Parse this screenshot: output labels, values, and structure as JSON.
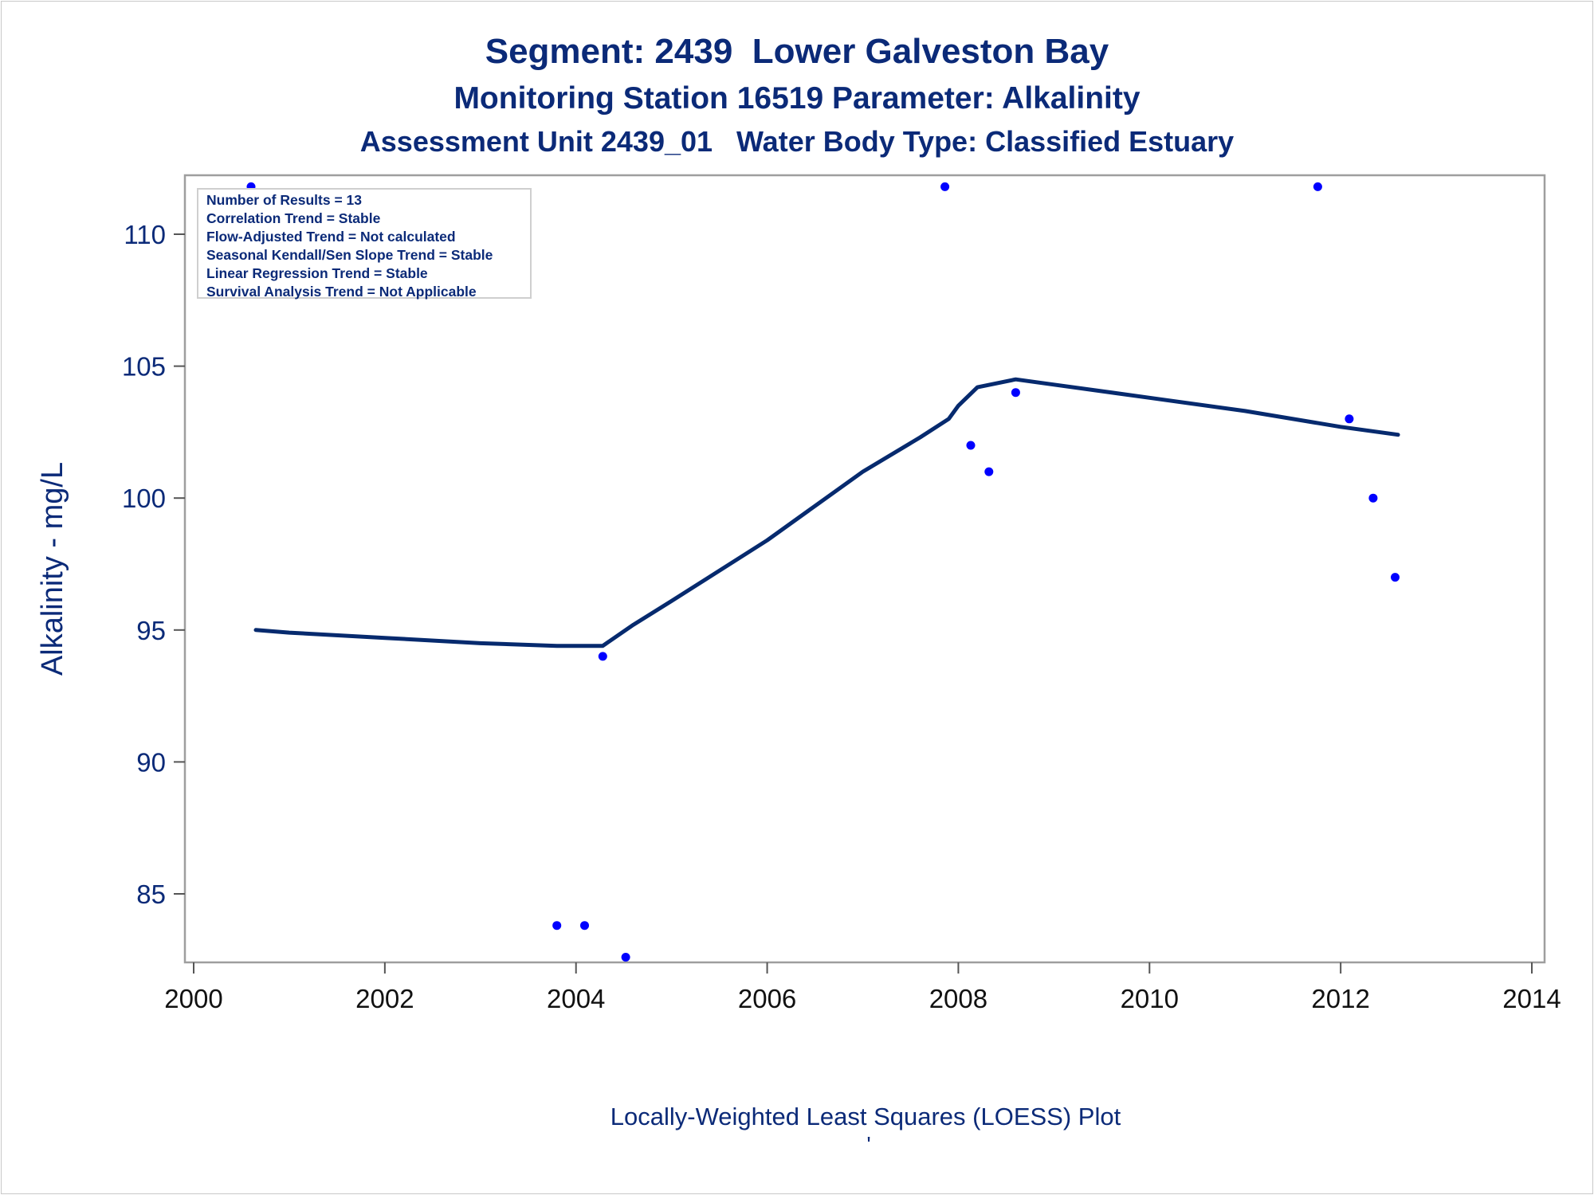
{
  "chart_data": {
    "type": "scatter",
    "title": "Segment: 2439  Lower Galveston Bay",
    "subtitle": "Monitoring Station 16519 Parameter: Alkalinity",
    "subtitle2": "Assessment Unit 2439_01   Water Body Type: Classified Estuary",
    "xlabel": "",
    "ylabel": "Alkalinity - mg/L",
    "footnote": "Locally-Weighted Least Squares (LOESS) Plot",
    "footnote_mark": "'",
    "xlim": [
      2000,
      2014
    ],
    "ylim": [
      82.5,
      112.4
    ],
    "x_ticks": [
      2000,
      2002,
      2004,
      2006,
      2008,
      2010,
      2012,
      2014
    ],
    "y_ticks": [
      85,
      90,
      95,
      100,
      105,
      110
    ],
    "grid": false,
    "legend": "none",
    "colors": {
      "text": "#0b2a78",
      "points": "#0000ff",
      "line": "#062a6e",
      "frame": "#9e9e9e"
    },
    "points": [
      {
        "x": 2000.6,
        "y": 111.8
      },
      {
        "x": 2003.8,
        "y": 83.8
      },
      {
        "x": 2004.09,
        "y": 83.8
      },
      {
        "x": 2004.28,
        "y": 94.0
      },
      {
        "x": 2004.52,
        "y": 82.6
      },
      {
        "x": 2007.86,
        "y": 111.8
      },
      {
        "x": 2008.13,
        "y": 102.0
      },
      {
        "x": 2008.32,
        "y": 101.0
      },
      {
        "x": 2008.6,
        "y": 104.0
      },
      {
        "x": 2011.76,
        "y": 111.8
      },
      {
        "x": 2012.09,
        "y": 103.0
      },
      {
        "x": 2012.34,
        "y": 100.0
      },
      {
        "x": 2012.57,
        "y": 97.0
      }
    ],
    "loess": {
      "name": "LOESS",
      "x": [
        2000.65,
        2001.0,
        2002.0,
        2003.0,
        2003.8,
        2004.28,
        2004.6,
        2005.0,
        2006.0,
        2007.0,
        2007.6,
        2007.9,
        2008.0,
        2008.2,
        2008.6,
        2009.0,
        2010.0,
        2011.0,
        2012.0,
        2012.6
      ],
      "y": [
        95.0,
        94.9,
        94.7,
        94.5,
        94.4,
        94.4,
        95.2,
        96.1,
        98.4,
        101.0,
        102.3,
        103.0,
        103.5,
        104.2,
        104.5,
        104.3,
        103.8,
        103.3,
        102.7,
        102.4
      ]
    },
    "annotations": [
      "Number of Results = 13",
      "Correlation Trend = Stable",
      "Flow-Adjusted Trend = Not calculated",
      "Seasonal Kendall/Sen Slope Trend = Stable",
      "Linear Regression Trend = Stable",
      "Survival Analysis Trend = Not Applicable"
    ]
  }
}
